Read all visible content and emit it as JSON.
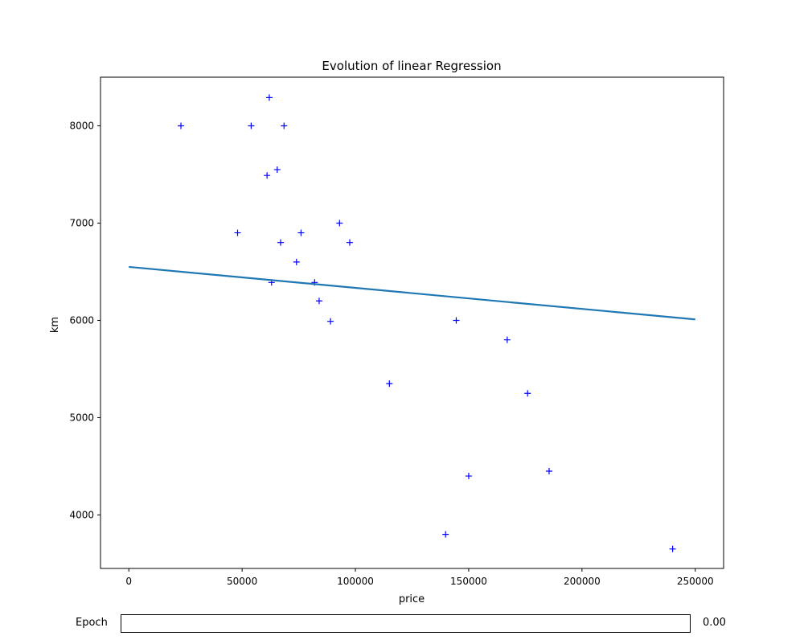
{
  "chart_data": {
    "type": "scatter",
    "title": "Evolution of linear Regression",
    "xlabel": "price",
    "ylabel": "km",
    "xlim": [
      -12500,
      262500
    ],
    "ylim": [
      3450,
      8500
    ],
    "xticks": [
      0,
      50000,
      100000,
      150000,
      200000,
      250000
    ],
    "yticks": [
      4000,
      5000,
      6000,
      7000,
      8000
    ],
    "grid": false,
    "series": [
      {
        "kind": "scatter",
        "marker": "+",
        "color": "#0000ff",
        "points": [
          {
            "x": 23000,
            "y": 8000
          },
          {
            "x": 54000,
            "y": 8000
          },
          {
            "x": 68500,
            "y": 8000
          },
          {
            "x": 62000,
            "y": 8290
          },
          {
            "x": 61000,
            "y": 7490
          },
          {
            "x": 65500,
            "y": 7550
          },
          {
            "x": 48000,
            "y": 6900
          },
          {
            "x": 76000,
            "y": 6900
          },
          {
            "x": 93000,
            "y": 7000
          },
          {
            "x": 67000,
            "y": 6800
          },
          {
            "x": 97500,
            "y": 6800
          },
          {
            "x": 74000,
            "y": 6600
          },
          {
            "x": 63000,
            "y": 6390
          },
          {
            "x": 82000,
            "y": 6390
          },
          {
            "x": 84000,
            "y": 6200
          },
          {
            "x": 89000,
            "y": 5990
          },
          {
            "x": 144500,
            "y": 6000
          },
          {
            "x": 167000,
            "y": 5800
          },
          {
            "x": 115000,
            "y": 5350
          },
          {
            "x": 176000,
            "y": 5250
          },
          {
            "x": 150000,
            "y": 4400
          },
          {
            "x": 185500,
            "y": 4450
          },
          {
            "x": 139800,
            "y": 3800
          },
          {
            "x": 240000,
            "y": 3650
          }
        ]
      },
      {
        "kind": "line",
        "color": "#1f77b4",
        "points": [
          {
            "x": 0,
            "y": 6550
          },
          {
            "x": 250000,
            "y": 6010
          }
        ]
      }
    ]
  },
  "slider": {
    "label": "Epoch",
    "value": 0.0,
    "value_text": "0.00",
    "color": "#1f77b4"
  }
}
